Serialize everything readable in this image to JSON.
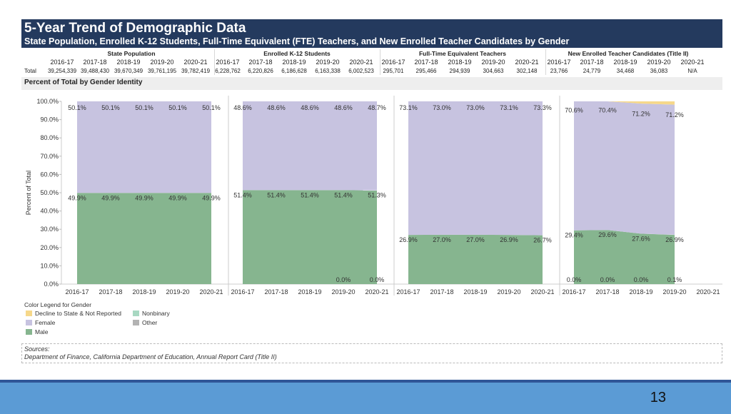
{
  "title": "5-Year Trend of Demographic Data",
  "subtitle": "State Population, Enrolled K-12 Students, Full-Time Equivalent (FTE) Teachers, and New Enrolled Teacher Candidates by Gender",
  "years": [
    "2016-17",
    "2017-18",
    "2018-19",
    "2019-20",
    "2020-21"
  ],
  "total_label": "Total",
  "groups": [
    {
      "name": "State Population",
      "totals": [
        "39,254,339",
        "39,488,430",
        "39,670,349",
        "39,761,195",
        "39,782,419"
      ]
    },
    {
      "name": "Enrolled K-12 Students",
      "totals": [
        "6,228,762",
        "6,220,826",
        "6,186,628",
        "6,163,338",
        "6,002,523"
      ]
    },
    {
      "name": "Full-Time Equivalent Teachers",
      "totals": [
        "295,701",
        "295,466",
        "294,939",
        "304,663",
        "302,148"
      ]
    },
    {
      "name": "New Enrolled Teacher Candidates (Title II)",
      "totals": [
        "23,766",
        "24,779",
        "34,468",
        "36,083",
        "N/A"
      ]
    }
  ],
  "section_label": "Percent of Total by Gender Identity",
  "legend": {
    "header": "Color Legend for Gender",
    "items": [
      {
        "label": "Decline to State & Not Reported",
        "color": "#f6d88a"
      },
      {
        "label": "Nonbinary",
        "color": "#a8d8c2"
      },
      {
        "label": "Female",
        "color": "#c7c3e0"
      },
      {
        "label": "Other",
        "color": "#b3b3b3"
      },
      {
        "label": "Male",
        "color": "#86b58f"
      }
    ]
  },
  "sources": {
    "label": "Sources:",
    "text": "Department of Finance, California Department of Education, Annual Report Card (Title II)"
  },
  "page_number": "13",
  "chart_data": {
    "type": "area",
    "ylabel": "Percent of Total",
    "ylim": [
      0,
      100
    ],
    "yticks": [
      "0.0%",
      "10.0%",
      "20.0%",
      "30.0%",
      "40.0%",
      "50.0%",
      "60.0%",
      "70.0%",
      "80.0%",
      "90.0%",
      "100.0%"
    ],
    "categories": [
      "2016-17",
      "2017-18",
      "2018-19",
      "2019-20",
      "2020-21"
    ],
    "colors": {
      "male": "#86b58f",
      "female": "#c7c3e0",
      "decline": "#f6d88a"
    },
    "panels": [
      {
        "name": "State Population",
        "male": [
          49.9,
          49.9,
          49.9,
          49.9,
          49.9
        ],
        "female": [
          50.1,
          50.1,
          50.1,
          50.1,
          50.1
        ],
        "male_labels": [
          "49.9%",
          "49.9%",
          "49.9%",
          "49.9%",
          "49.9%"
        ],
        "female_labels": [
          "50.1%",
          "50.1%",
          "50.1%",
          "50.1%",
          "50.1%"
        ]
      },
      {
        "name": "Enrolled K-12 Students",
        "male": [
          51.4,
          51.4,
          51.4,
          51.4,
          51.3
        ],
        "female": [
          48.6,
          48.6,
          48.6,
          48.6,
          48.7
        ],
        "nonbinary": [
          null,
          null,
          null,
          0.0,
          0.0
        ],
        "male_labels": [
          "51.4%",
          "51.4%",
          "51.4%",
          "51.4%",
          "51.3%"
        ],
        "female_labels": [
          "48.6%",
          "48.6%",
          "48.6%",
          "48.6%",
          "48.7%"
        ],
        "nonbinary_labels": [
          null,
          null,
          null,
          "0.0%",
          "0.0%"
        ]
      },
      {
        "name": "Full-Time Equivalent Teachers",
        "male": [
          26.9,
          27.0,
          27.0,
          26.9,
          26.7
        ],
        "female": [
          73.1,
          73.0,
          73.0,
          73.1,
          73.3
        ],
        "male_labels": [
          "26.9%",
          "27.0%",
          "27.0%",
          "26.9%",
          "26.7%"
        ],
        "female_labels": [
          "73.1%",
          "73.0%",
          "73.0%",
          "73.1%",
          "73.3%"
        ]
      },
      {
        "name": "New Enrolled Teacher Candidates (Title II)",
        "male": [
          29.4,
          29.6,
          27.6,
          26.9,
          null
        ],
        "female": [
          70.6,
          70.4,
          71.2,
          71.2,
          null
        ],
        "nonbinary": [
          0.0,
          0.0,
          0.0,
          0.1,
          null
        ],
        "decline": [
          0.0,
          0.0,
          1.2,
          1.8,
          null
        ],
        "male_labels": [
          "29.4%",
          "29.6%",
          "27.6%",
          "26.9%",
          null
        ],
        "female_labels": [
          "70.6%",
          "70.4%",
          "71.2%",
          "71.2%",
          null
        ],
        "nonbinary_labels": [
          "0.0%",
          "0.0%",
          "0.0%",
          "0.1%",
          null
        ]
      }
    ]
  }
}
